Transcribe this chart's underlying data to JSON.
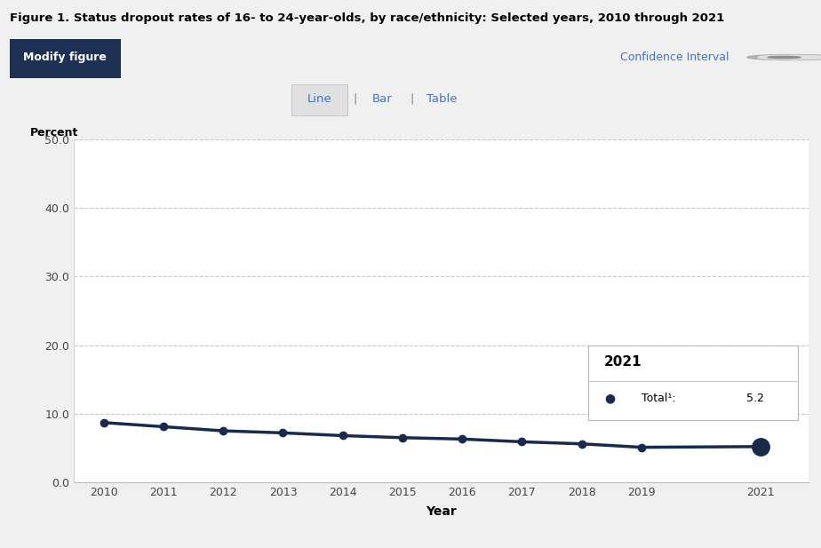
{
  "title": "Figure 1. Status dropout rates of 16- to 24-year-olds, by race/ethnicity: Selected years, 2010 through 2021",
  "xlabel": "Year",
  "ylabel": "Percent",
  "years": [
    2010,
    2011,
    2012,
    2013,
    2014,
    2015,
    2016,
    2017,
    2018,
    2019,
    2021
  ],
  "values": [
    8.7,
    8.1,
    7.5,
    7.2,
    6.8,
    6.5,
    6.3,
    5.9,
    5.6,
    5.1,
    5.2
  ],
  "line_color": "#1a2a4a",
  "marker_color": "#1a2a4a",
  "ylim": [
    0,
    50
  ],
  "yticks": [
    0.0,
    10.0,
    20.0,
    30.0,
    40.0,
    50.0
  ],
  "grid_color": "#c8c8c8",
  "bg_color": "#ffffff",
  "outer_bg_color": "#f0f0f0",
  "title_bg_color": "#e0e0e0",
  "legend_year": "2021",
  "legend_label": "Total¹",
  "legend_value": "5.2",
  "modify_button_color": "#1e3054",
  "modify_button_text": "Modify figure",
  "confidence_interval_text": "Confidence Interval",
  "tab_line": "Line",
  "tab_bar": "Bar",
  "tab_table": "Table",
  "tab_color": "#4472c4",
  "separator_color": "#888888"
}
